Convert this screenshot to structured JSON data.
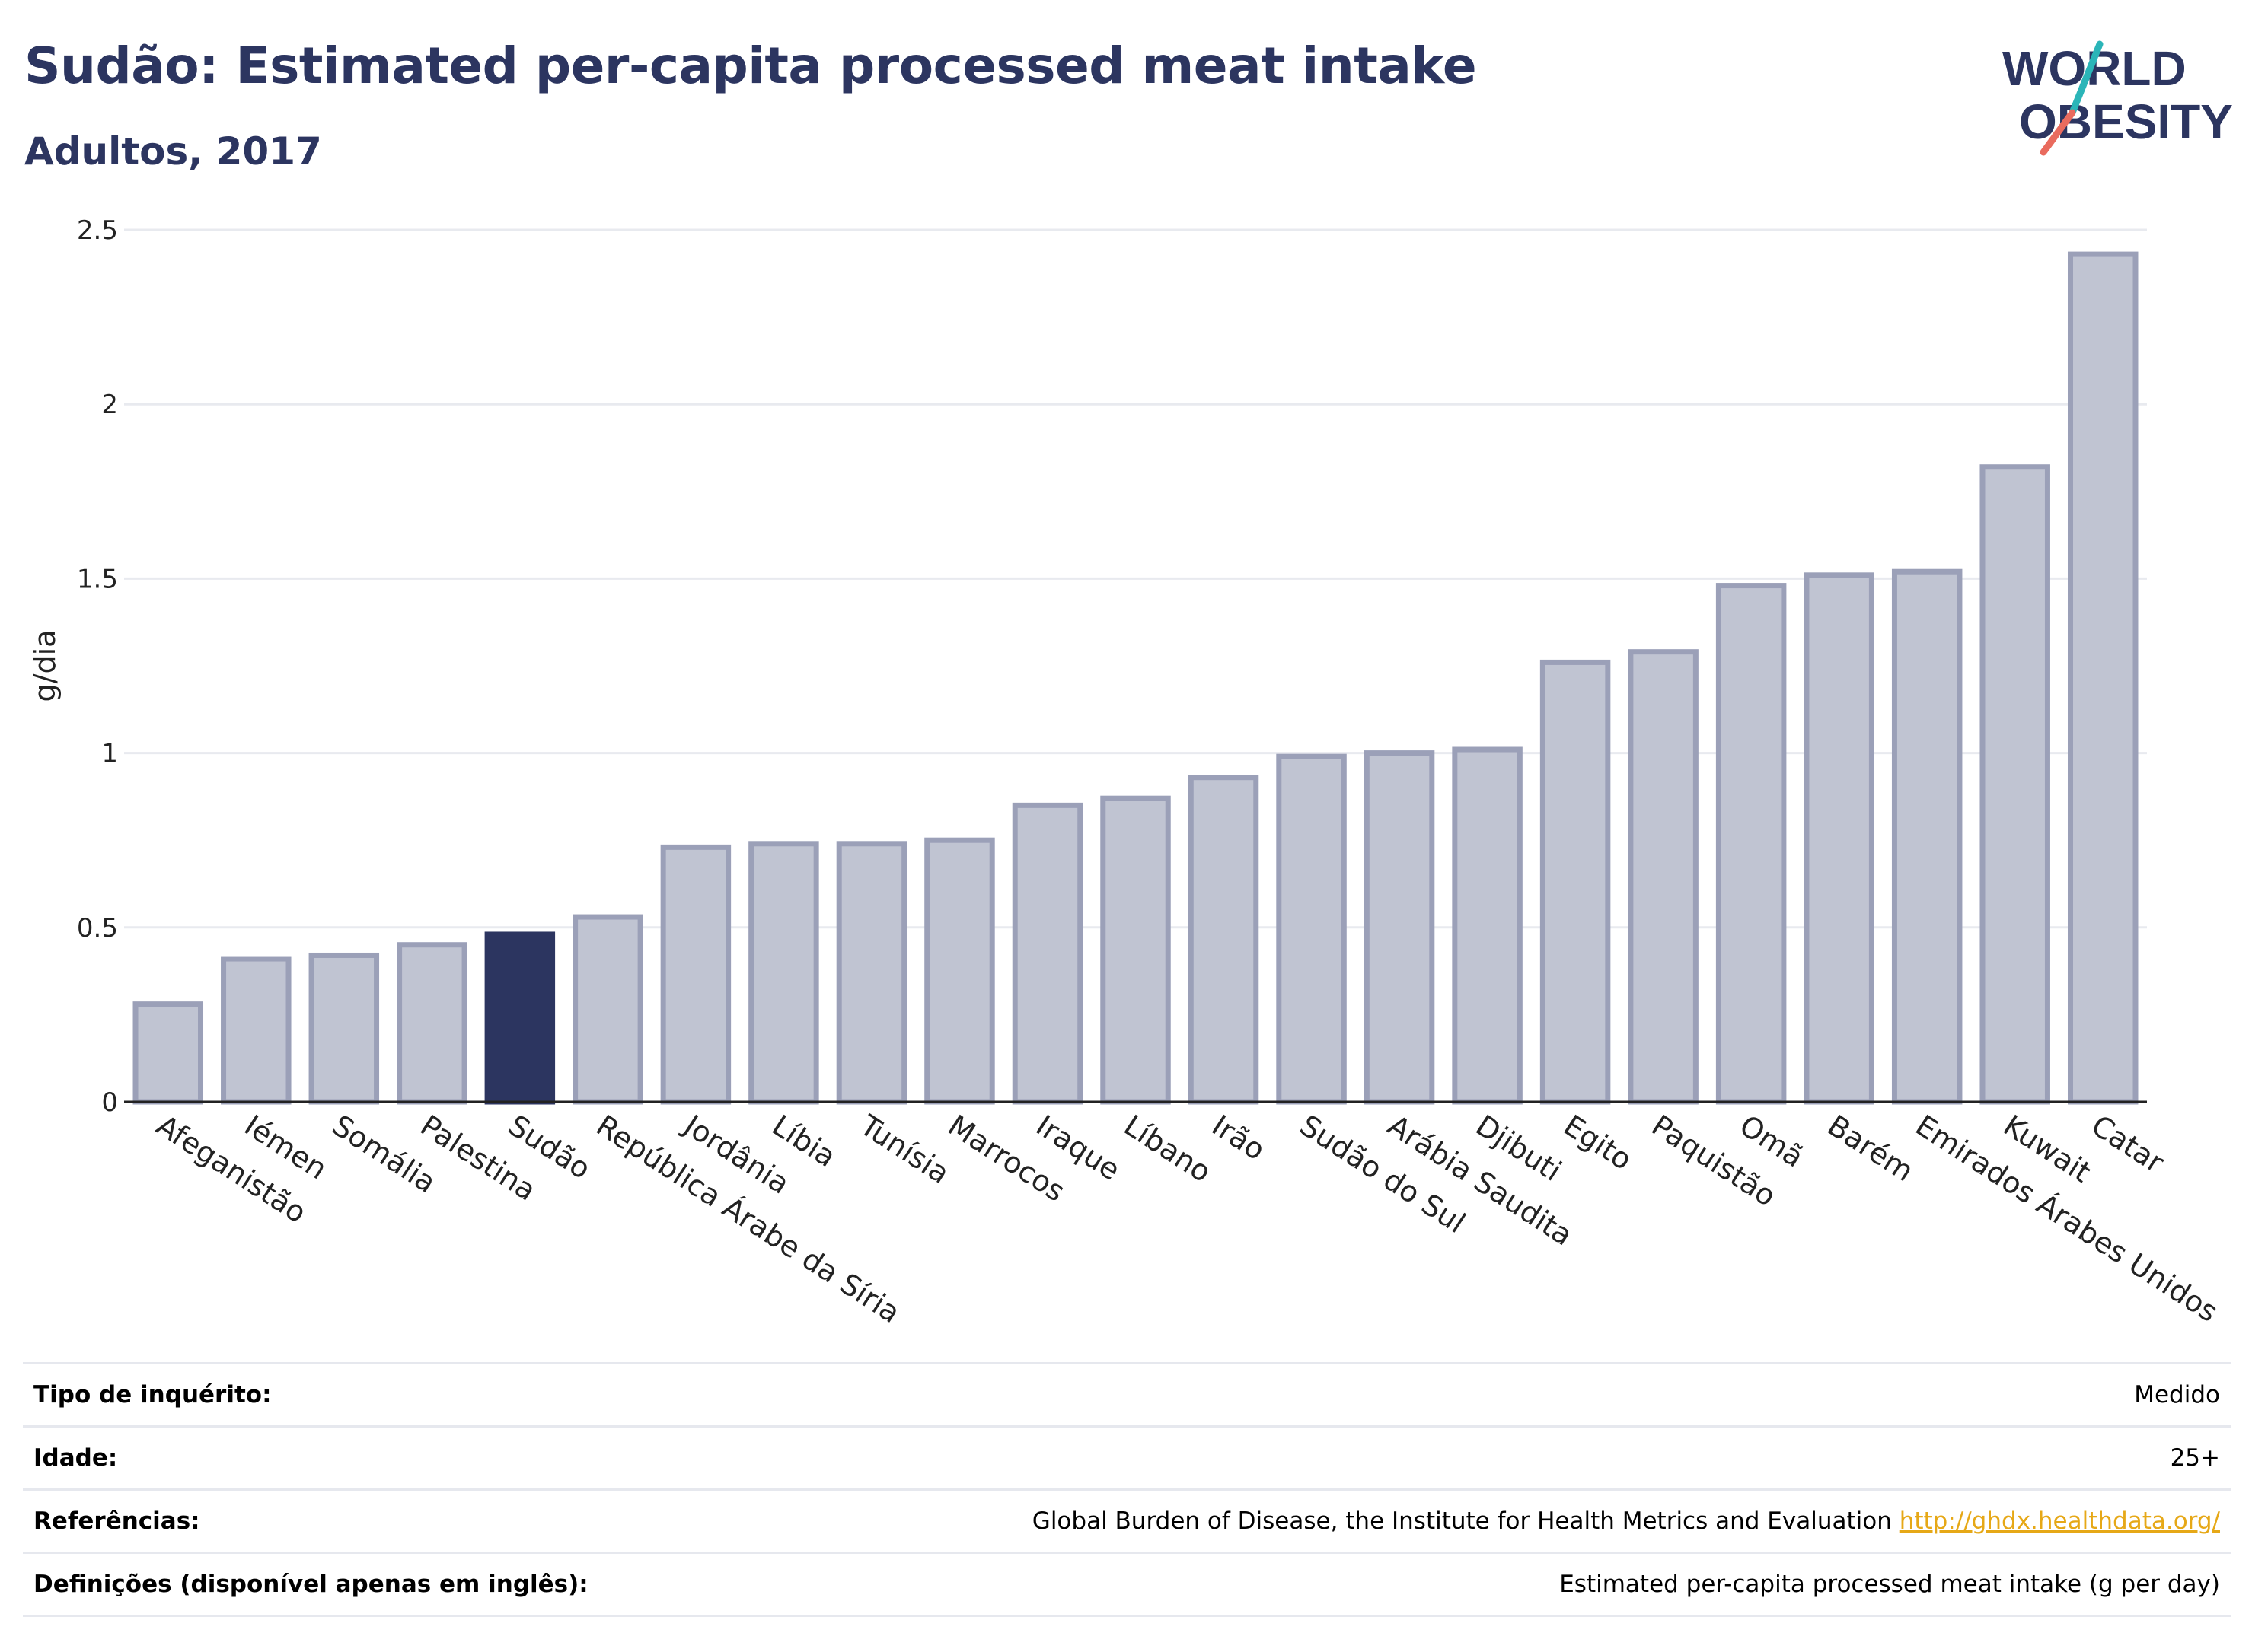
{
  "header": {
    "title": "Sudão: Estimated per-capita processed meat intake",
    "subtitle": "Adultos, 2017"
  },
  "logo": {
    "line1": "WORLD",
    "line2": "OBESITY"
  },
  "colors": {
    "highlight": "#2c3560",
    "bar_fill": "#c0c4d2",
    "bar_stroke": "#9ba0b8",
    "grid": "#e8eaef",
    "title": "#2c3560",
    "logo_slash_teal": "#2bb5b8",
    "logo_slash_coral": "#e96b5e"
  },
  "chart_data": {
    "type": "bar",
    "title": "",
    "xlabel": "",
    "ylabel": "g/dia",
    "ylim": [
      0,
      2.5
    ],
    "yticks": [
      0,
      0.5,
      1,
      1.5,
      2,
      2.5
    ],
    "ytick_labels": [
      "0",
      "0.5",
      "1",
      "1.5",
      "2",
      "2.5"
    ],
    "grid": true,
    "highlight": "Sudão",
    "categories": [
      "Afeganistão",
      "Iémen",
      "Somália",
      "Palestina",
      "Sudão",
      "República Árabe da Síria",
      "Jordânia",
      "Líbia",
      "Tunísia",
      "Marrocos",
      "Iraque",
      "Líbano",
      "Irão",
      "Sudão do Sul",
      "Arábia Saudita",
      "Djibuti",
      "Egito",
      "Paquistão",
      "Omã",
      "Barém",
      "Emirados Árabes Unidos",
      "Kuwait",
      "Catar"
    ],
    "values": [
      0.28,
      0.41,
      0.42,
      0.45,
      0.48,
      0.53,
      0.73,
      0.74,
      0.74,
      0.75,
      0.85,
      0.87,
      0.93,
      0.99,
      1.0,
      1.01,
      1.26,
      1.29,
      1.48,
      1.51,
      1.52,
      1.82,
      2.43
    ]
  },
  "meta": {
    "rows": [
      {
        "key": "Tipo de inquérito:",
        "value": "Medido",
        "link": ""
      },
      {
        "key": "Idade:",
        "value": "25+",
        "link": ""
      },
      {
        "key": "Referências:",
        "value": "Global Burden of Disease, the Institute for Health Metrics and Evaluation",
        "link": "http://ghdx.healthdata.org/"
      },
      {
        "key": "Definições (disponível apenas em inglês):",
        "value": "Estimated per-capita processed meat intake (g per day)",
        "link": ""
      }
    ]
  }
}
